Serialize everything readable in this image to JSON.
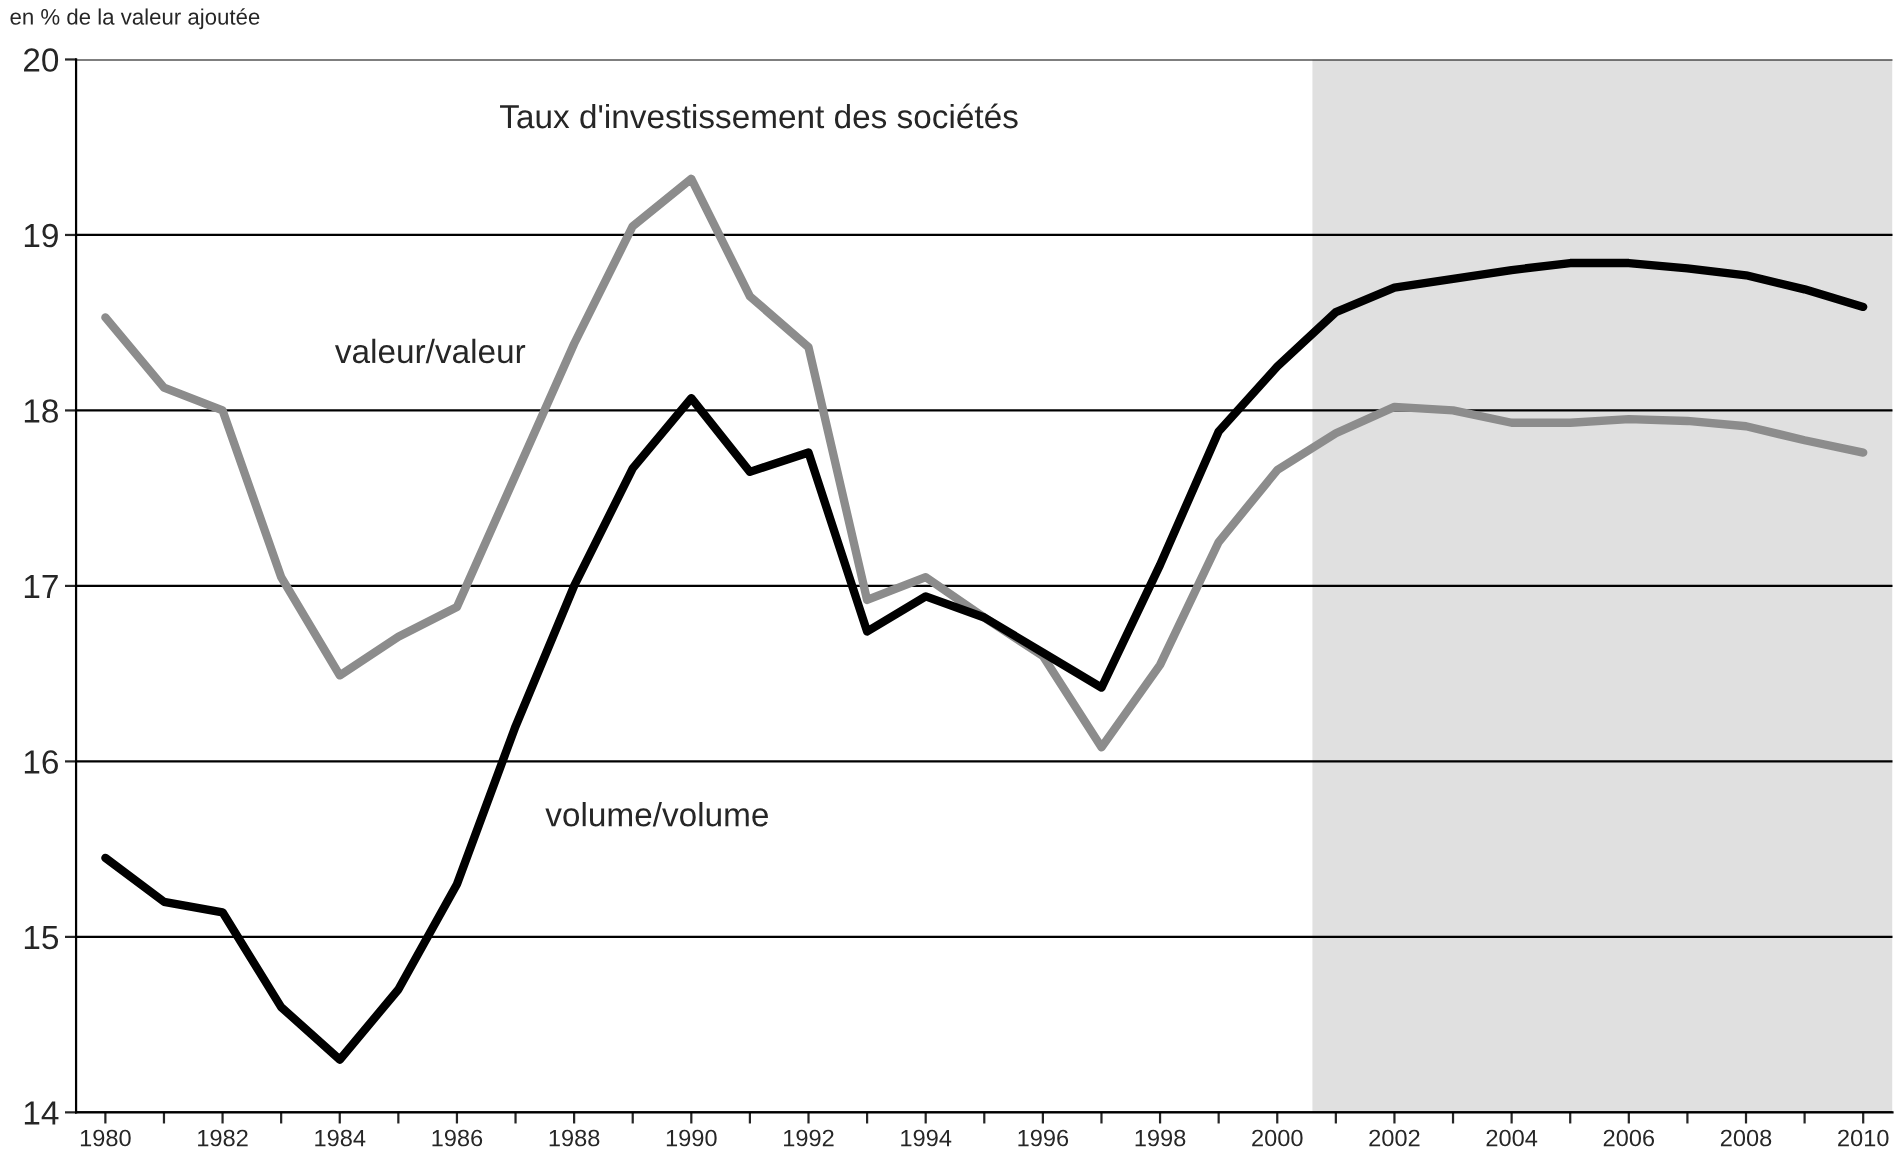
{
  "chart_data": {
    "type": "line",
    "title": "Taux d'investissement des sociétés",
    "ylabel": "en % de la valeur ajoutée",
    "x": [
      1980,
      1981,
      1982,
      1983,
      1984,
      1985,
      1986,
      1987,
      1988,
      1989,
      1990,
      1991,
      1992,
      1993,
      1994,
      1995,
      1996,
      1997,
      1998,
      1999,
      2000,
      2001,
      2002,
      2003,
      2004,
      2005,
      2006,
      2007,
      2008,
      2009,
      2010
    ],
    "series": [
      {
        "name": "valeur/valeur",
        "color": "#8c8c8c",
        "values": [
          18.53,
          18.13,
          18.0,
          17.05,
          16.49,
          16.71,
          16.88,
          17.63,
          18.38,
          19.05,
          19.32,
          18.65,
          18.36,
          16.92,
          17.05,
          16.82,
          16.6,
          16.08,
          16.55,
          17.25,
          17.66,
          17.87,
          18.02,
          18.0,
          17.93,
          17.93,
          17.95,
          17.94,
          17.91,
          17.83,
          17.76
        ]
      },
      {
        "name": "volume/volume",
        "color": "#000000",
        "values": [
          15.45,
          15.2,
          15.14,
          14.6,
          14.3,
          14.7,
          15.3,
          16.2,
          17.0,
          17.67,
          18.07,
          17.65,
          17.76,
          16.74,
          16.94,
          16.82,
          16.62,
          16.42,
          17.12,
          17.88,
          18.25,
          18.56,
          18.7,
          18.75,
          18.8,
          18.84,
          18.84,
          18.81,
          18.77,
          18.69,
          18.59
        ]
      }
    ],
    "xlim": [
      1979.5,
      2010.5
    ],
    "xticks": [
      1980,
      {
        "value": 1981,
        "label": null
      },
      1982,
      {
        "value": 1983,
        "label": null
      },
      1984,
      {
        "value": 1985,
        "label": null
      },
      1986,
      {
        "value": 1987,
        "label": null
      },
      1988,
      {
        "value": 1989,
        "label": null
      },
      1990,
      {
        "value": 1991,
        "label": null
      },
      1992,
      {
        "value": 1993,
        "label": null
      },
      1994,
      {
        "value": 1995,
        "label": null
      },
      1996,
      {
        "value": 1997,
        "label": null
      },
      1998,
      {
        "value": 1999,
        "label": null
      },
      2000,
      {
        "value": 2001,
        "label": null
      },
      2002,
      {
        "value": 2003,
        "label": null
      },
      2004,
      {
        "value": 2005,
        "label": null
      },
      2006,
      {
        "value": 2007,
        "label": null
      },
      2008,
      {
        "value": 2009,
        "label": null
      },
      2010
    ],
    "ylim": [
      14,
      20
    ],
    "yticks": [
      14,
      15,
      16,
      17,
      18,
      19,
      20
    ],
    "grid": "y",
    "legend": false,
    "marker": "none",
    "line_style": "solid",
    "bands": [
      {
        "axis": "x",
        "from": 2000.6,
        "to": 2010.5,
        "color": "#e0e0e0"
      }
    ]
  }
}
